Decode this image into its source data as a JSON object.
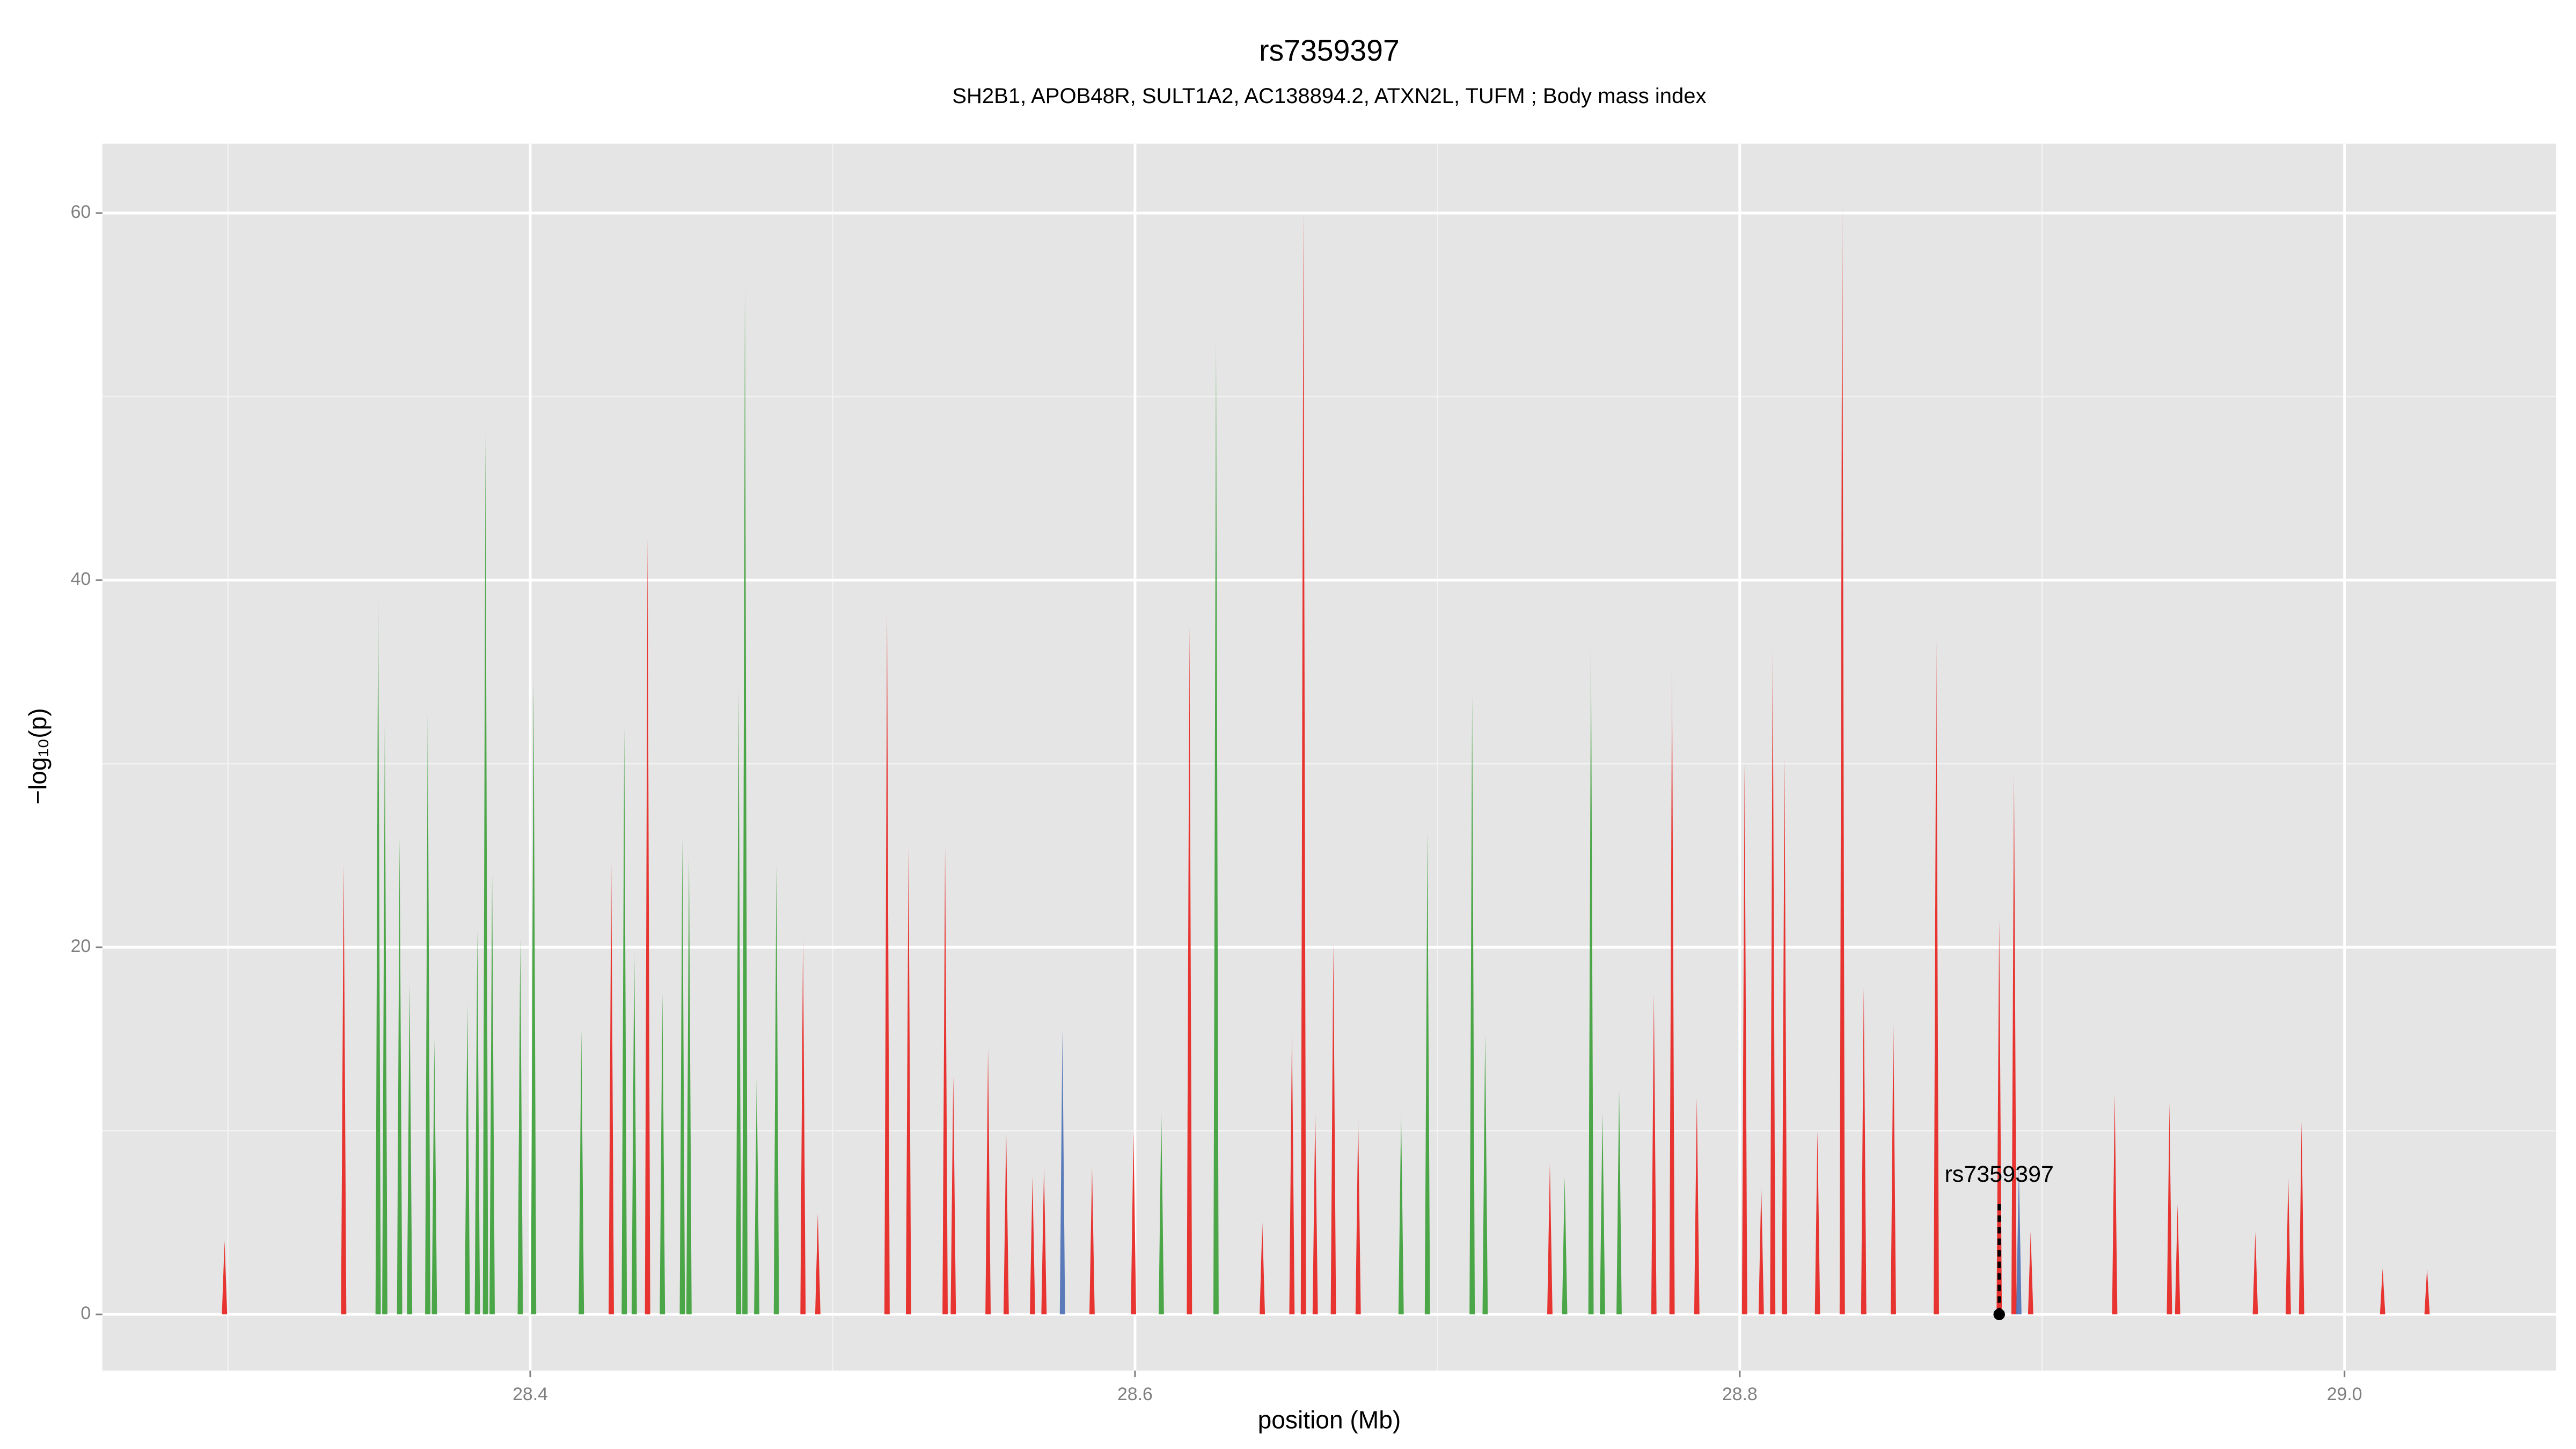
{
  "chart_data": {
    "type": "spike",
    "title": "rs7359397",
    "subtitle": "SH2B1, APOB48R, SULT1A2, AC138894.2, ATXN2L, TUFM ; Body mass index",
    "x_label": "position (Mb)",
    "y_label": "−log₁₀(p)",
    "xlim": [
      28.2585,
      29.07
    ],
    "ylim": [
      -3.06,
      63.78
    ],
    "xticks": [
      28.4,
      28.6,
      28.8,
      {
        "value": 29,
        "label": "29.0"
      }
    ],
    "yticks": [
      0,
      20,
      40,
      60
    ],
    "x_minor_breaks": [
      28.3,
      28.5,
      28.7,
      28.9
    ],
    "y_minor_breaks": [
      10,
      30,
      50
    ],
    "grid": true,
    "series": [
      {
        "color": "#3a9e35",
        "x": [
          28.3497,
          28.3519,
          28.3568,
          28.3601,
          28.3661,
          28.3683,
          28.3792,
          28.3825,
          28.3852,
          28.3874,
          28.3967,
          28.4011,
          28.4169,
          28.4311,
          28.4344,
          28.4437,
          28.4503,
          28.4525,
          28.4689,
          28.471,
          28.4749,
          28.4814,
          28.6087,
          28.6268,
          28.688,
          28.6967,
          28.7115,
          28.7158,
          28.7421,
          28.7508,
          28.7546,
          28.7601
        ],
        "values": [
          39.3,
          32.3,
          26,
          18,
          33,
          15,
          17,
          21,
          48,
          24,
          20.5,
          34.5,
          15.5,
          32,
          20,
          17.5,
          26,
          25,
          34,
          56,
          13,
          24.5,
          11,
          53,
          11,
          26.3,
          33.7,
          15.3,
          7.5,
          36.8,
          11,
          12.3
        ]
      },
      {
        "color": "#e8201c",
        "x": [
          28.2989,
          28.3383,
          28.4268,
          28.4388,
          28.4902,
          28.4951,
          28.518,
          28.5251,
          28.5372,
          28.5399,
          28.5514,
          28.5574,
          28.5661,
          28.5699,
          28.5858,
          28.5995,
          28.618,
          28.6421,
          28.6519,
          28.6557,
          28.6596,
          28.6656,
          28.6738,
          28.7372,
          28.7716,
          28.7776,
          28.7858,
          28.8016,
          28.8071,
          28.8109,
          28.8148,
          28.8257,
          28.8339,
          28.841,
          28.8508,
          28.865,
          28.8858,
          28.8907,
          28.8962,
          28.924,
          28.9421,
          28.9448,
          28.9705,
          28.9814,
          28.9858,
          29.0126,
          29.0273
        ],
        "values": [
          4,
          24.5,
          24.5,
          42.3,
          20.5,
          5.5,
          38.3,
          25.4,
          25.5,
          13,
          14.5,
          10,
          7.5,
          8,
          8,
          10,
          37.5,
          5,
          15.5,
          60,
          11,
          20.2,
          10.7,
          8.2,
          17.5,
          35.5,
          11.8,
          30,
          7,
          36.3,
          30.3,
          10,
          60.8,
          17.8,
          15.8,
          36.7,
          21.5,
          29.5,
          4.5,
          12,
          11.5,
          6,
          4.5,
          7.5,
          10.5,
          2.5,
          2.5
        ]
      },
      {
        "color": "#4a6fb5",
        "x": [
          28.576,
          28.8923
        ],
        "values": [
          15.5,
          8
        ]
      }
    ],
    "annotation": {
      "text": "rs7359397",
      "x": 28.8858,
      "y": 0
    }
  }
}
